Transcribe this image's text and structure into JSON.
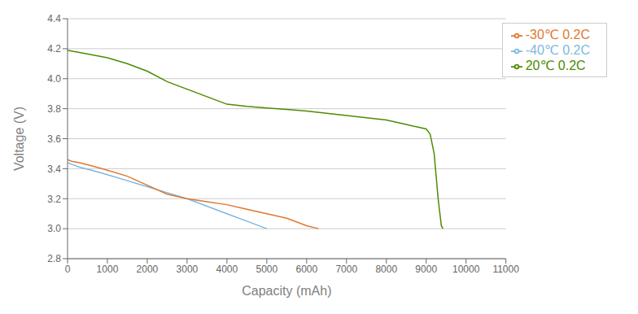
{
  "chart_data": {
    "type": "line",
    "xlabel": "Capacity (mAh)",
    "ylabel": "Voltage (V)",
    "xlim": [
      0,
      11000
    ],
    "ylim": [
      2.8,
      4.4
    ],
    "xticks": [
      0,
      1000,
      2000,
      3000,
      4000,
      5000,
      6000,
      7000,
      8000,
      9000,
      10000,
      11000
    ],
    "yticks": [
      2.8,
      {
        "value": 3.0,
        "label": "3.0"
      },
      3.2,
      3.4,
      3.6,
      3.8,
      {
        "value": 4.0,
        "label": "4.0"
      },
      4.2,
      4.4
    ],
    "grid": true,
    "legend": "upper right",
    "series": [
      {
        "name": "-40℃  0.2C",
        "color": "#7cb8e0",
        "x": [
          0,
          100,
          300,
          600,
          1000,
          1500,
          2000,
          2500,
          3000,
          3500,
          4000,
          4500,
          5000
        ],
        "values": [
          3.44,
          3.43,
          3.41,
          3.39,
          3.36,
          3.32,
          3.28,
          3.24,
          3.2,
          3.15,
          3.1,
          3.05,
          3.0
        ]
      },
      {
        "name": "-30℃  0.2C",
        "color": "#e07830",
        "x": [
          0,
          100,
          300,
          600,
          1000,
          1500,
          2000,
          2500,
          3000,
          3500,
          4000,
          4500,
          5000,
          5500,
          6000,
          6300
        ],
        "values": [
          3.46,
          3.45,
          3.44,
          3.42,
          3.39,
          3.35,
          3.29,
          3.23,
          3.2,
          3.18,
          3.16,
          3.13,
          3.1,
          3.07,
          3.02,
          3.0
        ]
      },
      {
        "name": "20℃  0.2C",
        "color": "#4c8c00",
        "x": [
          0,
          100,
          300,
          600,
          1000,
          1500,
          2000,
          2500,
          3000,
          3500,
          4000,
          4500,
          5000,
          5500,
          6000,
          6500,
          7000,
          7500,
          8000,
          8500,
          9000,
          9100,
          9200,
          9300,
          9380,
          9420
        ],
        "values": [
          4.19,
          4.185,
          4.175,
          4.16,
          4.14,
          4.1,
          4.05,
          3.98,
          3.93,
          3.88,
          3.83,
          3.815,
          3.805,
          3.795,
          3.785,
          3.77,
          3.755,
          3.74,
          3.725,
          3.695,
          3.665,
          3.63,
          3.5,
          3.2,
          3.02,
          3.0
        ]
      }
    ]
  }
}
